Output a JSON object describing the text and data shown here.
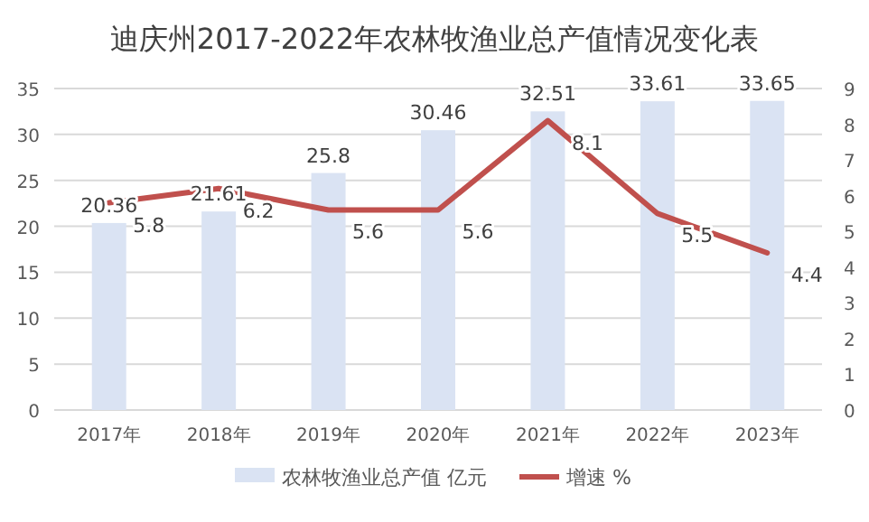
{
  "chart_data": {
    "type": "bar",
    "title": "迪庆州2017-2022年农林牧渔业总产值情况变化表",
    "categories": [
      "2017年",
      "2018年",
      "2019年",
      "2020年",
      "2021年",
      "2022年",
      "2023年"
    ],
    "series": [
      {
        "name": "农林牧渔业总产值 亿元",
        "color": "#dae3f3",
        "values": [
          20.36,
          21.61,
          25.8,
          30.46,
          32.51,
          33.61,
          33.65
        ]
      },
      {
        "name": "增速 %",
        "type": "line",
        "axis": "y2",
        "color": "#c0504d",
        "values": [
          5.8,
          6.2,
          5.6,
          5.6,
          8.1,
          5.5,
          4.4
        ]
      }
    ],
    "ylim": [
      0,
      35
    ],
    "yticks": [
      0,
      5,
      10,
      15,
      20,
      25,
      30,
      35
    ],
    "y2lim": [
      0,
      9
    ],
    "y2ticks": [
      0,
      1,
      2,
      3,
      4,
      5,
      6,
      7,
      8,
      9
    ],
    "grid": "y",
    "legend": "bottom",
    "data_labels": true
  }
}
